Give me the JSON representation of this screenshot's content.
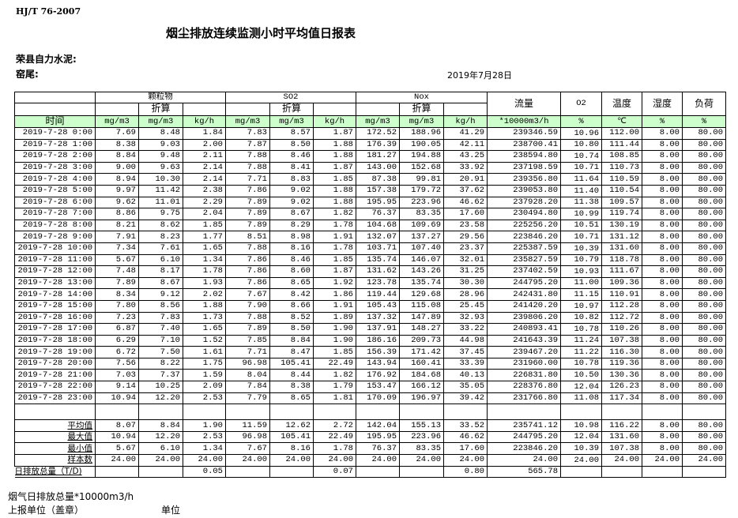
{
  "header": {
    "standard": "HJ/T  76-2007",
    "title": "烟尘排放连续监测小时平均值日报表",
    "company": "荣县自力水泥:",
    "unit": "窑尾:",
    "date": "2019年7月28日"
  },
  "table": {
    "groups": [
      "颗粒物",
      "SO2",
      "Nox"
    ],
    "converted_label": "折算",
    "extra_headers": [
      "流量",
      "O2",
      "温度",
      "湿度",
      "负荷"
    ],
    "time_header": "时间",
    "units": [
      "mg/m3",
      "mg/m3",
      "kg/h",
      "mg/m3",
      "mg/m3",
      "kg/h",
      "mg/m3",
      "mg/m3",
      "kg/h",
      "*10000m3/h",
      "%",
      "℃",
      "%",
      "%"
    ],
    "unit_row_color": "#ccffcc",
    "rows": [
      [
        "2019-7-28 0:00",
        "7.69",
        "8.48",
        "1.84",
        "7.83",
        "8.57",
        "1.87",
        "172.52",
        "188.96",
        "41.29",
        "239346.59",
        "10.96",
        "112.00",
        "8.00",
        "80.00"
      ],
      [
        "2019-7-28 1:00",
        "8.38",
        "9.03",
        "2.00",
        "7.87",
        "8.50",
        "1.88",
        "176.39",
        "190.05",
        "42.11",
        "238700.41",
        "10.80",
        "111.44",
        "8.00",
        "80.00"
      ],
      [
        "2019-7-28 2:00",
        "8.84",
        "9.48",
        "2.11",
        "7.88",
        "8.46",
        "1.88",
        "181.27",
        "194.88",
        "43.25",
        "238594.80",
        "10.74",
        "108.85",
        "8.00",
        "80.00"
      ],
      [
        "2019-7-28 3:00",
        "9.00",
        "9.63",
        "2.14",
        "7.88",
        "8.41",
        "1.87",
        "143.00",
        "152.68",
        "33.92",
        "237198.59",
        "10.71",
        "110.73",
        "8.00",
        "80.00"
      ],
      [
        "2019-7-28 4:00",
        "8.94",
        "10.30",
        "2.14",
        "7.71",
        "8.83",
        "1.85",
        "87.38",
        "99.81",
        "20.91",
        "239356.80",
        "11.64",
        "110.59",
        "8.00",
        "80.00"
      ],
      [
        "2019-7-28 5:00",
        "9.97",
        "11.42",
        "2.38",
        "7.86",
        "9.02",
        "1.88",
        "157.38",
        "179.72",
        "37.62",
        "239053.80",
        "11.40",
        "110.54",
        "8.00",
        "80.00"
      ],
      [
        "2019-7-28 6:00",
        "9.62",
        "11.01",
        "2.29",
        "7.89",
        "9.02",
        "1.88",
        "195.95",
        "223.96",
        "46.62",
        "237928.20",
        "11.38",
        "109.57",
        "8.00",
        "80.00"
      ],
      [
        "2019-7-28 7:00",
        "8.86",
        "9.75",
        "2.04",
        "7.89",
        "8.67",
        "1.82",
        "76.37",
        "83.35",
        "17.60",
        "230494.80",
        "10.99",
        "119.74",
        "8.00",
        "80.00"
      ],
      [
        "2019-7-28 8:00",
        "8.21",
        "8.62",
        "1.85",
        "7.89",
        "8.29",
        "1.78",
        "104.68",
        "109.69",
        "23.58",
        "225256.20",
        "10.51",
        "130.19",
        "8.00",
        "80.00"
      ],
      [
        "2019-7-28 9:00",
        "7.91",
        "8.23",
        "1.77",
        "8.51",
        "8.98",
        "1.91",
        "132.07",
        "137.27",
        "29.56",
        "223846.20",
        "10.71",
        "131.12",
        "8.00",
        "80.00"
      ],
      [
        "2019-7-28 10:00",
        "7.34",
        "7.61",
        "1.65",
        "7.88",
        "8.16",
        "1.78",
        "103.71",
        "107.40",
        "23.37",
        "225387.59",
        "10.39",
        "131.60",
        "8.00",
        "80.00"
      ],
      [
        "2019-7-28 11:00",
        "5.67",
        "6.10",
        "1.34",
        "7.86",
        "8.46",
        "1.85",
        "135.74",
        "146.07",
        "32.01",
        "235827.59",
        "10.79",
        "118.78",
        "8.00",
        "80.00"
      ],
      [
        "2019-7-28 12:00",
        "7.48",
        "8.17",
        "1.78",
        "7.86",
        "8.60",
        "1.87",
        "131.62",
        "143.26",
        "31.25",
        "237402.59",
        "10.93",
        "111.67",
        "8.00",
        "80.00"
      ],
      [
        "2019-7-28 13:00",
        "7.89",
        "8.67",
        "1.93",
        "7.86",
        "8.65",
        "1.92",
        "123.78",
        "135.74",
        "30.30",
        "244795.20",
        "11.00",
        "109.36",
        "8.00",
        "80.00"
      ],
      [
        "2019-7-28 14:00",
        "8.34",
        "9.12",
        "2.02",
        "7.67",
        "8.42",
        "1.86",
        "119.44",
        "129.68",
        "28.96",
        "242431.80",
        "11.15",
        "110.91",
        "8.00",
        "80.00"
      ],
      [
        "2019-7-28 15:00",
        "7.80",
        "8.56",
        "1.88",
        "7.90",
        "8.66",
        "1.91",
        "105.43",
        "115.08",
        "25.45",
        "241420.20",
        "10.97",
        "112.28",
        "8.00",
        "80.00"
      ],
      [
        "2019-7-28 16:00",
        "7.23",
        "7.83",
        "1.73",
        "7.88",
        "8.52",
        "1.89",
        "137.32",
        "147.89",
        "32.93",
        "239806.20",
        "10.82",
        "112.72",
        "8.00",
        "80.00"
      ],
      [
        "2019-7-28 17:00",
        "6.87",
        "7.40",
        "1.65",
        "7.89",
        "8.50",
        "1.90",
        "137.91",
        "148.27",
        "33.22",
        "240893.41",
        "10.78",
        "110.26",
        "8.00",
        "80.00"
      ],
      [
        "2019-7-28 18:00",
        "6.29",
        "7.10",
        "1.52",
        "7.85",
        "8.84",
        "1.90",
        "186.16",
        "209.73",
        "44.98",
        "241643.39",
        "11.24",
        "107.38",
        "8.00",
        "80.00"
      ],
      [
        "2019-7-28 19:00",
        "6.72",
        "7.50",
        "1.61",
        "7.71",
        "8.47",
        "1.85",
        "156.39",
        "171.42",
        "37.45",
        "239467.20",
        "11.22",
        "116.30",
        "8.00",
        "80.00"
      ],
      [
        "2019-7-28 20:00",
        "7.56",
        "8.22",
        "1.75",
        "96.98",
        "105.41",
        "22.49",
        "143.94",
        "160.41",
        "33.39",
        "231960.00",
        "10.78",
        "119.36",
        "8.00",
        "80.00"
      ],
      [
        "2019-7-28 21:00",
        "7.03",
        "7.37",
        "1.59",
        "8.04",
        "8.44",
        "1.82",
        "176.92",
        "184.68",
        "40.13",
        "226831.80",
        "10.50",
        "130.36",
        "8.00",
        "80.00"
      ],
      [
        "2019-7-28 22:00",
        "9.14",
        "10.25",
        "2.09",
        "7.84",
        "8.38",
        "1.79",
        "153.47",
        "166.12",
        "35.05",
        "228376.80",
        "12.04",
        "126.23",
        "8.00",
        "80.00"
      ],
      [
        "2019-7-28 23:00",
        "10.94",
        "12.20",
        "2.53",
        "7.79",
        "8.65",
        "1.81",
        "170.09",
        "196.97",
        "39.42",
        "231766.80",
        "11.08",
        "117.34",
        "8.00",
        "80.00"
      ]
    ],
    "summary": [
      [
        "平均值",
        "8.07",
        "8.84",
        "1.90",
        "11.59",
        "12.62",
        "2.72",
        "142.04",
        "155.13",
        "33.52",
        "235741.12",
        "10.98",
        "116.22",
        "8.00",
        "80.00"
      ],
      [
        "最大值",
        "10.94",
        "12.20",
        "2.53",
        "96.98",
        "105.41",
        "22.49",
        "195.95",
        "223.96",
        "46.62",
        "244795.20",
        "12.04",
        "131.60",
        "8.00",
        "80.00"
      ],
      [
        "最小值",
        "5.67",
        "6.10",
        "1.34",
        "7.67",
        "8.16",
        "1.78",
        "76.37",
        "83.35",
        "17.60",
        "223846.20",
        "10.39",
        "107.38",
        "8.00",
        "80.00"
      ],
      [
        "样本数",
        "24.00",
        "24.00",
        "24.00",
        "24.00",
        "24.00",
        "24.00",
        "24.00",
        "24.00",
        "24.00",
        "24.00",
        "24.00",
        "24.00",
        "24.00",
        "24.00"
      ]
    ],
    "daily_total": [
      "日排放总量（T/D)",
      "",
      "",
      "0.05",
      "",
      "",
      "0.07",
      "",
      "",
      "0.80",
      "565.78",
      "",
      "",
      "",
      ""
    ]
  },
  "footer": {
    "flue_gas_total": "烟气日排放总量*10000m3/h",
    "reporting_unit": "上报单位（盖章）",
    "unit_label": "单位"
  }
}
